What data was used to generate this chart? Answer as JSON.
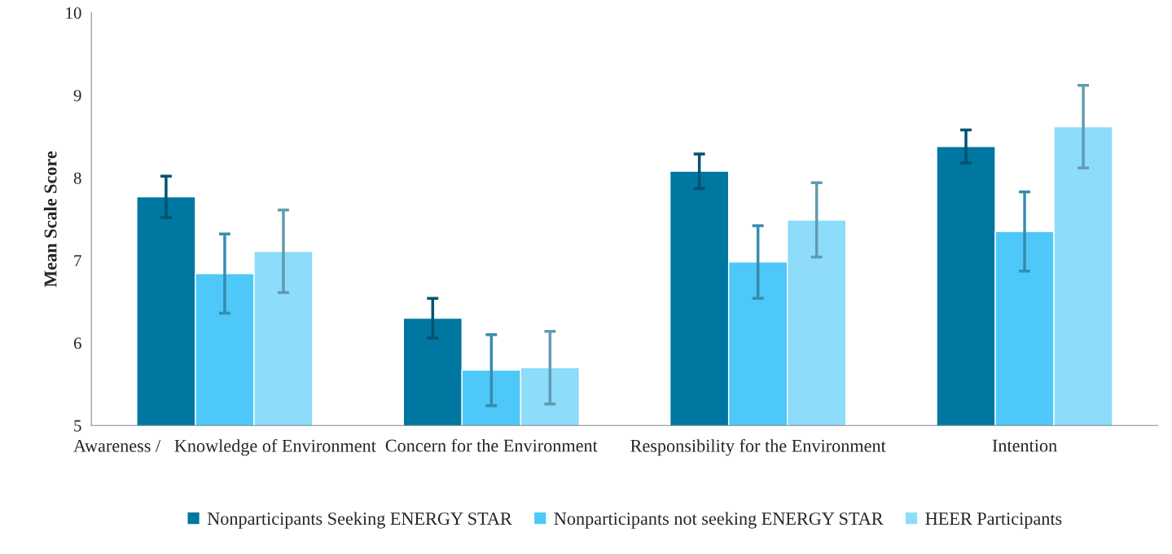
{
  "chart_data": {
    "type": "bar",
    "ylabel": "Mean Scale Score",
    "categories": [
      "Awareness /   Knowledge of Environment",
      "Concern for the Environment",
      "Responsibility for the Environment",
      "Intention"
    ],
    "series": [
      {
        "name": "Nonparticipants Seeking ENERGY STAR",
        "color": "#0077a0",
        "values": [
          7.77,
          6.3,
          8.08,
          8.38
        ],
        "errors": [
          0.25,
          0.24,
          0.21,
          0.2
        ]
      },
      {
        "name": "Nonparticipants not seeking ENERGY STAR",
        "color": "#4dc8f8",
        "values": [
          6.84,
          5.67,
          6.98,
          7.35
        ],
        "errors": [
          0.48,
          0.43,
          0.44,
          0.48
        ]
      },
      {
        "name": "HEER Participants",
        "color": "#8cdcfa",
        "values": [
          7.11,
          5.7,
          7.49,
          8.62
        ],
        "errors": [
          0.5,
          0.44,
          0.45,
          0.5
        ]
      }
    ],
    "ylim": [
      5,
      10
    ],
    "yticks": [
      5,
      6,
      7,
      8,
      9,
      10
    ],
    "grid": false,
    "legend": "bottom"
  }
}
